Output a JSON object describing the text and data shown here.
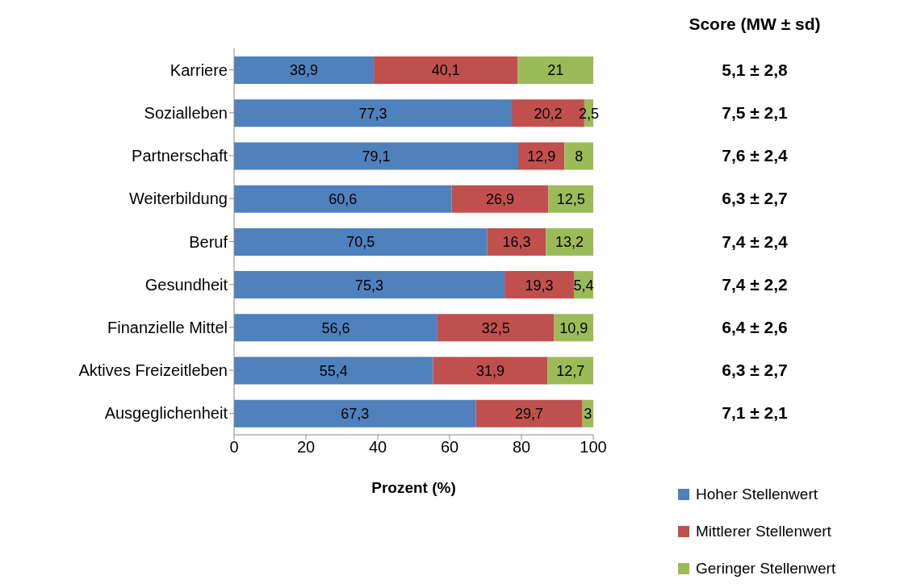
{
  "chart_data": {
    "type": "bar",
    "orientation": "horizontal",
    "stacked": true,
    "categories": [
      "Karriere",
      "Sozialleben",
      "Partnerschaft",
      "Weiterbildung",
      "Beruf",
      "Gesundheit",
      "Finanzielle Mittel",
      "Aktives Freizeitleben",
      "Ausgeglichenheit"
    ],
    "series": [
      {
        "name": "Hoher Stellenwert",
        "color": "#4f81bd",
        "values": [
          38.9,
          77.3,
          79.1,
          60.6,
          70.5,
          75.3,
          56.6,
          55.4,
          67.3
        ],
        "value_labels": [
          "38,9",
          "77,3",
          "79,1",
          "60,6",
          "70,5",
          "75,3",
          "56,6",
          "55,4",
          "67,3"
        ]
      },
      {
        "name": "Mittlerer Stellenwert",
        "color": "#c0504d",
        "values": [
          40.1,
          20.2,
          12.9,
          26.9,
          16.3,
          19.3,
          32.5,
          31.9,
          29.7
        ],
        "value_labels": [
          "40,1",
          "20,2",
          "12,9",
          "26,9",
          "16,3",
          "19,3",
          "32,5",
          "31,9",
          "29,7"
        ]
      },
      {
        "name": "Geringer Stellenwert",
        "color": "#9bbb59",
        "values": [
          21,
          2.5,
          8,
          12.5,
          13.2,
          5.4,
          10.9,
          12.7,
          3
        ],
        "value_labels": [
          "21",
          "2,5",
          "8",
          "12,5",
          "13,2",
          "5,4",
          "10,9",
          "12,7",
          "3"
        ]
      }
    ],
    "xlim": [
      0,
      100
    ],
    "xticks": [
      0,
      20,
      40,
      60,
      80,
      100
    ],
    "xlabel": "Prozent (%)",
    "legend": "bottom right",
    "annotations": [
      "Score (MW ± sd)",
      "5,1 ± 2,8",
      "7,5 ± 2,1",
      "7,6 ± 2,4",
      "6,3 ± 2,7",
      "7,4 ± 2,4",
      "7,4 ± 2,2",
      "6,4 ± 2,6",
      "6,3 ± 2,7",
      "7,1 ± 2,1"
    ]
  }
}
